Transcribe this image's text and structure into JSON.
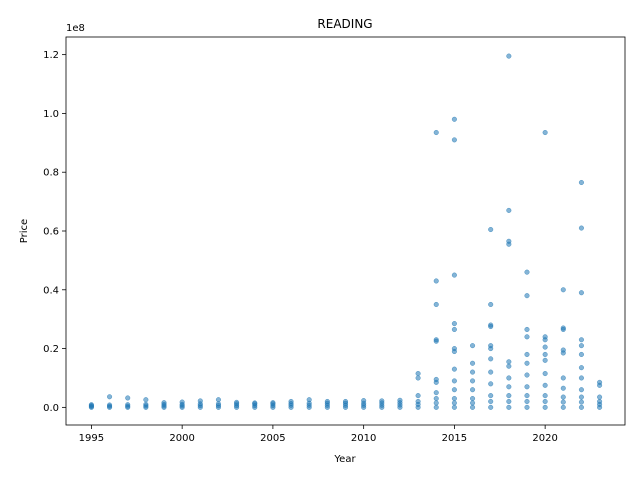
{
  "chart_data": {
    "type": "scatter",
    "title": "READING",
    "xlabel": "Year",
    "ylabel": "Price",
    "y_offset_label": "1e8",
    "xlim": [
      1993.6,
      2024.4
    ],
    "ylim": [
      -6000000,
      126000000
    ],
    "x_ticks": [
      1995,
      2000,
      2005,
      2010,
      2015,
      2020
    ],
    "x_tick_labels": [
      "1995",
      "2000",
      "2005",
      "2010",
      "2015",
      "2020"
    ],
    "y_ticks": [
      0,
      20000000,
      40000000,
      60000000,
      80000000,
      100000000,
      120000000
    ],
    "y_tick_labels": [
      "0.0",
      "0.2",
      "0.4",
      "0.6",
      "0.8",
      "1.0",
      "1.2"
    ],
    "grid": false,
    "marker_color": "#1f77b4",
    "series": [
      {
        "points": [
          [
            1995,
            0
          ],
          [
            1995,
            300000
          ],
          [
            1995,
            600000
          ],
          [
            1995,
            900000
          ],
          [
            1996,
            0
          ],
          [
            1996,
            400000
          ],
          [
            1996,
            800000
          ],
          [
            1996,
            3600000
          ],
          [
            1997,
            0
          ],
          [
            1997,
            400000
          ],
          [
            1997,
            900000
          ],
          [
            1997,
            3200000
          ],
          [
            1998,
            0
          ],
          [
            1998,
            500000
          ],
          [
            1998,
            1000000
          ],
          [
            1998,
            2600000
          ],
          [
            1999,
            0
          ],
          [
            1999,
            500000
          ],
          [
            1999,
            1000000
          ],
          [
            1999,
            1600000
          ],
          [
            2000,
            0
          ],
          [
            2000,
            500000
          ],
          [
            2000,
            1000000
          ],
          [
            2000,
            1800000
          ],
          [
            2001,
            0
          ],
          [
            2001,
            600000
          ],
          [
            2001,
            1200000
          ],
          [
            2001,
            2200000
          ],
          [
            2002,
            0
          ],
          [
            2002,
            600000
          ],
          [
            2002,
            1200000
          ],
          [
            2002,
            2600000
          ],
          [
            2003,
            0
          ],
          [
            2003,
            600000
          ],
          [
            2003,
            1200000
          ],
          [
            2003,
            1700000
          ],
          [
            2004,
            0
          ],
          [
            2004,
            600000
          ],
          [
            2004,
            1200000
          ],
          [
            2004,
            1500000
          ],
          [
            2005,
            0
          ],
          [
            2005,
            600000
          ],
          [
            2005,
            1200000
          ],
          [
            2005,
            1600000
          ],
          [
            2006,
            0
          ],
          [
            2006,
            700000
          ],
          [
            2006,
            1300000
          ],
          [
            2006,
            2000000
          ],
          [
            2007,
            0
          ],
          [
            2007,
            700000
          ],
          [
            2007,
            1400000
          ],
          [
            2007,
            2600000
          ],
          [
            2008,
            0
          ],
          [
            2008,
            700000
          ],
          [
            2008,
            1400000
          ],
          [
            2008,
            2000000
          ],
          [
            2009,
            0
          ],
          [
            2009,
            700000
          ],
          [
            2009,
            1400000
          ],
          [
            2009,
            2000000
          ],
          [
            2010,
            0
          ],
          [
            2010,
            700000
          ],
          [
            2010,
            1400000
          ],
          [
            2010,
            2300000
          ],
          [
            2011,
            0
          ],
          [
            2011,
            700000
          ],
          [
            2011,
            1500000
          ],
          [
            2011,
            2200000
          ],
          [
            2012,
            0
          ],
          [
            2012,
            800000
          ],
          [
            2012,
            1600000
          ],
          [
            2012,
            2400000
          ],
          [
            2013,
            0
          ],
          [
            2013,
            1000000
          ],
          [
            2013,
            2000000
          ],
          [
            2013,
            4000000
          ],
          [
            2013,
            10000000
          ],
          [
            2013,
            11500000
          ],
          [
            2014,
            0
          ],
          [
            2014,
            1500000
          ],
          [
            2014,
            3000000
          ],
          [
            2014,
            5000000
          ],
          [
            2014,
            8500000
          ],
          [
            2014,
            9500000
          ],
          [
            2014,
            22500000
          ],
          [
            2014,
            23000000
          ],
          [
            2014,
            35000000
          ],
          [
            2014,
            43000000
          ],
          [
            2014,
            93500000
          ],
          [
            2015,
            0
          ],
          [
            2015,
            1500000
          ],
          [
            2015,
            3000000
          ],
          [
            2015,
            6000000
          ],
          [
            2015,
            9000000
          ],
          [
            2015,
            13000000
          ],
          [
            2015,
            19000000
          ],
          [
            2015,
            20000000
          ],
          [
            2015,
            26500000
          ],
          [
            2015,
            28500000
          ],
          [
            2015,
            45000000
          ],
          [
            2015,
            91000000
          ],
          [
            2015,
            98000000
          ],
          [
            2016,
            0
          ],
          [
            2016,
            1500000
          ],
          [
            2016,
            3000000
          ],
          [
            2016,
            6000000
          ],
          [
            2016,
            9000000
          ],
          [
            2016,
            12000000
          ],
          [
            2016,
            15000000
          ],
          [
            2016,
            21000000
          ],
          [
            2017,
            0
          ],
          [
            2017,
            2000000
          ],
          [
            2017,
            4000000
          ],
          [
            2017,
            8000000
          ],
          [
            2017,
            12000000
          ],
          [
            2017,
            16500000
          ],
          [
            2017,
            20000000
          ],
          [
            2017,
            21000000
          ],
          [
            2017,
            27500000
          ],
          [
            2017,
            28000000
          ],
          [
            2017,
            35000000
          ],
          [
            2017,
            60500000
          ],
          [
            2018,
            0
          ],
          [
            2018,
            2000000
          ],
          [
            2018,
            4000000
          ],
          [
            2018,
            7000000
          ],
          [
            2018,
            10000000
          ],
          [
            2018,
            14000000
          ],
          [
            2018,
            15500000
          ],
          [
            2018,
            55500000
          ],
          [
            2018,
            56500000
          ],
          [
            2018,
            67000000
          ],
          [
            2018,
            119500000
          ],
          [
            2019,
            0
          ],
          [
            2019,
            2000000
          ],
          [
            2019,
            4000000
          ],
          [
            2019,
            7000000
          ],
          [
            2019,
            11000000
          ],
          [
            2019,
            15000000
          ],
          [
            2019,
            18000000
          ],
          [
            2019,
            24000000
          ],
          [
            2019,
            26500000
          ],
          [
            2019,
            38000000
          ],
          [
            2019,
            46000000
          ],
          [
            2020,
            0
          ],
          [
            2020,
            2000000
          ],
          [
            2020,
            4000000
          ],
          [
            2020,
            7500000
          ],
          [
            2020,
            11500000
          ],
          [
            2020,
            16000000
          ],
          [
            2020,
            18000000
          ],
          [
            2020,
            20500000
          ],
          [
            2020,
            23000000
          ],
          [
            2020,
            24000000
          ],
          [
            2020,
            93500000
          ],
          [
            2021,
            0
          ],
          [
            2021,
            1800000
          ],
          [
            2021,
            3500000
          ],
          [
            2021,
            6500000
          ],
          [
            2021,
            10000000
          ],
          [
            2021,
            18500000
          ],
          [
            2021,
            19500000
          ],
          [
            2021,
            26500000
          ],
          [
            2021,
            27000000
          ],
          [
            2021,
            40000000
          ],
          [
            2022,
            0
          ],
          [
            2022,
            1800000
          ],
          [
            2022,
            3500000
          ],
          [
            2022,
            6000000
          ],
          [
            2022,
            10000000
          ],
          [
            2022,
            13500000
          ],
          [
            2022,
            18000000
          ],
          [
            2022,
            21000000
          ],
          [
            2022,
            23000000
          ],
          [
            2022,
            39000000
          ],
          [
            2022,
            61000000
          ],
          [
            2022,
            76500000
          ],
          [
            2023,
            0
          ],
          [
            2023,
            1000000
          ],
          [
            2023,
            2000000
          ],
          [
            2023,
            3500000
          ],
          [
            2023,
            7500000
          ],
          [
            2023,
            8500000
          ]
        ]
      }
    ]
  }
}
